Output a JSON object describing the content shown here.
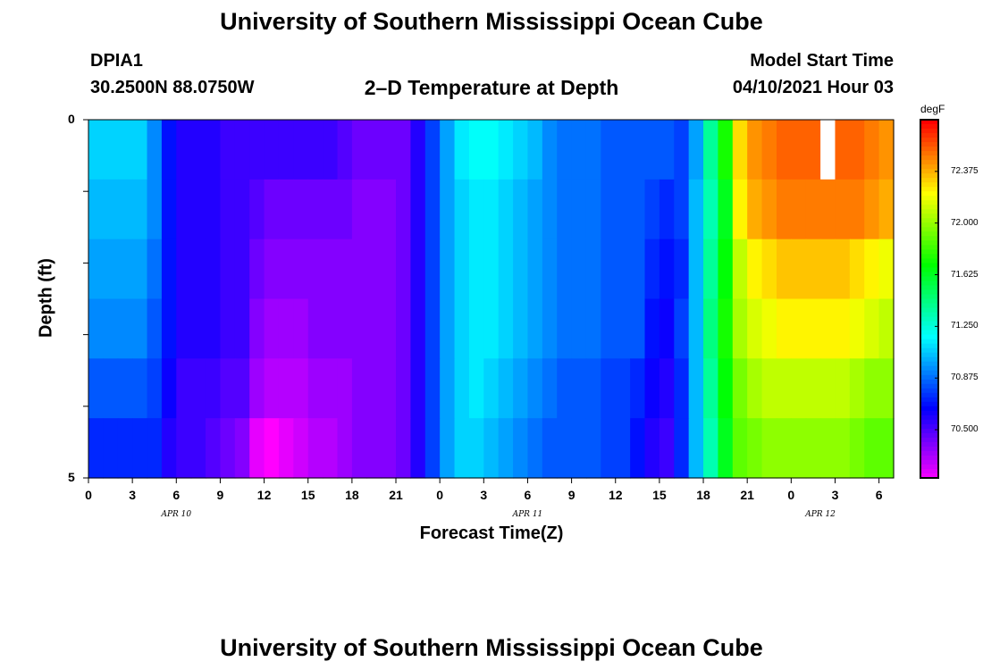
{
  "header": {
    "title": "University of Southern Mississippi Ocean Cube",
    "station": "DPIA1",
    "coords": "30.2500N  88.0750W",
    "plot_title": "2–D Temperature at Depth",
    "model_label": "Model Start Time",
    "model_time": "04/10/2021 Hour 03"
  },
  "footer": {
    "title": "University of Southern Mississippi Ocean Cube"
  },
  "chart_data": {
    "type": "heatmap",
    "title": "2–D Temperature at Depth",
    "xlabel": "Forecast Time(Z)",
    "ylabel": "Depth (ft)",
    "x_tick_labels": [
      "0",
      "3",
      "6",
      "9",
      "12",
      "15",
      "18",
      "21",
      "0",
      "3",
      "6",
      "9",
      "12",
      "15",
      "18",
      "21",
      "0",
      "3",
      "6"
    ],
    "date_labels": [
      "APR 10",
      "APR 11",
      "APR 12"
    ],
    "y_tick_labels": [
      "0",
      "5"
    ],
    "ylim": [
      0,
      5
    ],
    "depth_levels": 5,
    "hours_from_start": [
      0,
      1,
      2,
      3,
      4,
      5,
      6,
      7,
      8,
      9,
      10,
      11,
      12,
      13,
      14,
      15,
      16,
      17,
      18,
      19,
      20,
      21,
      22,
      23,
      24,
      25,
      26,
      27,
      28,
      29,
      30,
      31,
      32,
      33,
      34,
      35,
      36,
      37,
      38,
      39,
      40,
      41,
      42,
      43,
      44,
      45,
      46,
      47,
      48,
      49,
      50,
      51,
      52,
      53,
      54
    ],
    "colorbar": {
      "unit": "degF",
      "tick_labels": [
        "72.375",
        "72.000",
        "71.625",
        "71.250",
        "70.875",
        "70.500"
      ],
      "range": [
        70.15,
        72.75
      ]
    },
    "temperature_by_depth": [
      [
        71.1,
        71.1,
        71.1,
        71.1,
        70.95,
        70.7,
        70.6,
        70.6,
        70.6,
        70.55,
        70.55,
        70.55,
        70.55,
        70.55,
        70.55,
        70.55,
        70.55,
        70.5,
        70.45,
        70.45,
        70.45,
        70.45,
        70.6,
        70.8,
        71.0,
        71.15,
        71.2,
        71.2,
        71.15,
        71.1,
        71.05,
        70.95,
        70.9,
        70.9,
        70.9,
        70.85,
        70.85,
        70.85,
        70.85,
        70.85,
        70.8,
        71.0,
        71.4,
        71.75,
        72.3,
        72.45,
        72.5,
        72.55,
        72.55,
        72.55,
        72.55,
        72.55,
        72.55,
        72.5,
        72.45
      ],
      [
        71.05,
        71.05,
        71.05,
        71.05,
        70.95,
        70.7,
        70.6,
        70.6,
        70.6,
        70.55,
        70.55,
        70.5,
        70.45,
        70.45,
        70.45,
        70.45,
        70.45,
        70.45,
        70.4,
        70.4,
        70.4,
        70.45,
        70.6,
        70.8,
        71.0,
        71.1,
        71.15,
        71.15,
        71.1,
        71.05,
        71.0,
        70.95,
        70.9,
        70.9,
        70.9,
        70.85,
        70.85,
        70.85,
        70.8,
        70.75,
        70.8,
        71.05,
        71.35,
        71.65,
        72.25,
        72.4,
        72.45,
        72.5,
        72.5,
        72.5,
        72.5,
        72.5,
        72.5,
        72.45,
        72.4
      ],
      [
        71.0,
        71.0,
        71.0,
        71.0,
        70.9,
        70.7,
        70.6,
        70.6,
        70.6,
        70.55,
        70.55,
        70.45,
        70.4,
        70.4,
        70.4,
        70.4,
        70.4,
        70.4,
        70.4,
        70.4,
        70.4,
        70.45,
        70.6,
        70.8,
        71.0,
        71.1,
        71.15,
        71.15,
        71.1,
        71.05,
        71.0,
        70.95,
        70.9,
        70.9,
        70.9,
        70.85,
        70.85,
        70.85,
        70.75,
        70.7,
        70.75,
        71.05,
        71.4,
        71.7,
        72.1,
        72.25,
        72.3,
        72.35,
        72.35,
        72.35,
        72.35,
        72.35,
        72.3,
        72.25,
        72.2
      ],
      [
        70.95,
        70.95,
        70.95,
        70.95,
        70.85,
        70.7,
        70.6,
        70.6,
        70.6,
        70.55,
        70.55,
        70.4,
        70.35,
        70.35,
        70.35,
        70.4,
        70.4,
        70.4,
        70.4,
        70.4,
        70.4,
        70.45,
        70.6,
        70.8,
        71.0,
        71.1,
        71.15,
        71.15,
        71.1,
        71.05,
        71.0,
        70.95,
        70.9,
        70.9,
        70.9,
        70.85,
        70.85,
        70.85,
        70.7,
        70.65,
        70.8,
        71.05,
        71.45,
        71.75,
        72.05,
        72.15,
        72.2,
        72.25,
        72.25,
        72.25,
        72.25,
        72.25,
        72.2,
        72.15,
        72.1
      ],
      [
        70.85,
        70.85,
        70.85,
        70.85,
        70.8,
        70.65,
        70.55,
        70.55,
        70.55,
        70.5,
        70.5,
        70.35,
        70.3,
        70.3,
        70.3,
        70.35,
        70.35,
        70.35,
        70.4,
        70.4,
        70.4,
        70.45,
        70.6,
        70.8,
        71.0,
        71.1,
        71.15,
        71.1,
        71.05,
        71.0,
        70.95,
        70.9,
        70.85,
        70.85,
        70.85,
        70.8,
        70.8,
        70.75,
        70.65,
        70.6,
        70.75,
        71.05,
        71.4,
        71.7,
        71.95,
        72.05,
        72.1,
        72.1,
        72.1,
        72.1,
        72.1,
        72.1,
        72.05,
        72.0,
        72.0
      ],
      [
        70.75,
        70.75,
        70.75,
        70.75,
        70.75,
        70.6,
        70.55,
        70.55,
        70.5,
        70.45,
        70.4,
        70.2,
        70.15,
        70.2,
        70.25,
        70.3,
        70.3,
        70.35,
        70.4,
        70.4,
        70.4,
        70.45,
        70.6,
        70.8,
        71.0,
        71.1,
        71.1,
        71.05,
        71.0,
        70.95,
        70.9,
        70.85,
        70.85,
        70.85,
        70.85,
        70.8,
        70.8,
        70.7,
        70.6,
        70.55,
        70.75,
        71.05,
        71.35,
        71.65,
        71.9,
        71.95,
        72.0,
        72.0,
        72.0,
        72.0,
        72.0,
        72.0,
        71.95,
        71.9,
        71.9
      ]
    ],
    "missing_cells": [
      {
        "depth_row": 0,
        "hour": 50
      }
    ]
  }
}
